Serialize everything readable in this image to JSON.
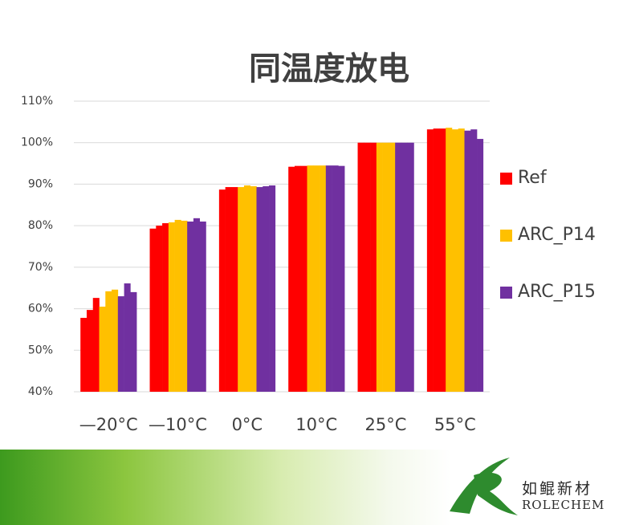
{
  "chart_data": {
    "type": "bar",
    "title": "同温度放电",
    "categories": [
      "—20°C",
      "—10°C",
      "0°C",
      "10°C",
      "25°C",
      "55°C"
    ],
    "series": [
      {
        "name": "Ref",
        "color": "#ff0000",
        "values": [
          [
            57.8,
            59.7,
            62.6
          ],
          [
            79.3,
            80.0,
            80.6
          ],
          [
            88.7,
            89.3,
            89.3
          ],
          [
            94.2,
            94.4,
            94.4
          ],
          [
            100,
            100,
            100
          ],
          [
            103.2,
            103.4,
            103.4
          ]
        ]
      },
      {
        "name": "ARC_P14",
        "color": "#ffc000",
        "values": [
          [
            60.5,
            64.2,
            64.6
          ],
          [
            80.8,
            81.4,
            81.2
          ],
          [
            89.3,
            89.7,
            89.5
          ],
          [
            94.5,
            94.5,
            94.5
          ],
          [
            100,
            100,
            100
          ],
          [
            103.6,
            103.2,
            103.4
          ]
        ]
      },
      {
        "name": "ARC_P15",
        "color": "#7030a0",
        "values": [
          [
            63.0,
            66.1,
            64.0
          ],
          [
            81.0,
            81.8,
            81.0
          ],
          [
            89.3,
            89.5,
            89.7
          ],
          [
            94.5,
            94.5,
            94.4
          ],
          [
            100,
            100,
            100
          ],
          [
            102.9,
            103.2,
            100.9
          ]
        ]
      }
    ],
    "ylim": [
      40,
      110
    ],
    "yticks": [
      {
        "value": 40,
        "label": "40%"
      },
      {
        "value": 50,
        "label": "50%"
      },
      {
        "value": 60,
        "label": "60%"
      },
      {
        "value": 70,
        "label": "70%"
      },
      {
        "value": 80,
        "label": "80%"
      },
      {
        "value": 90,
        "label": "90%"
      },
      {
        "value": 100,
        "label": "100%"
      },
      {
        "value": 110,
        "label": "110%"
      }
    ],
    "grid": true,
    "legend": "right"
  },
  "footer": {
    "brand_cn": "如鲲新材",
    "brand_en": "ROLECHEM"
  }
}
